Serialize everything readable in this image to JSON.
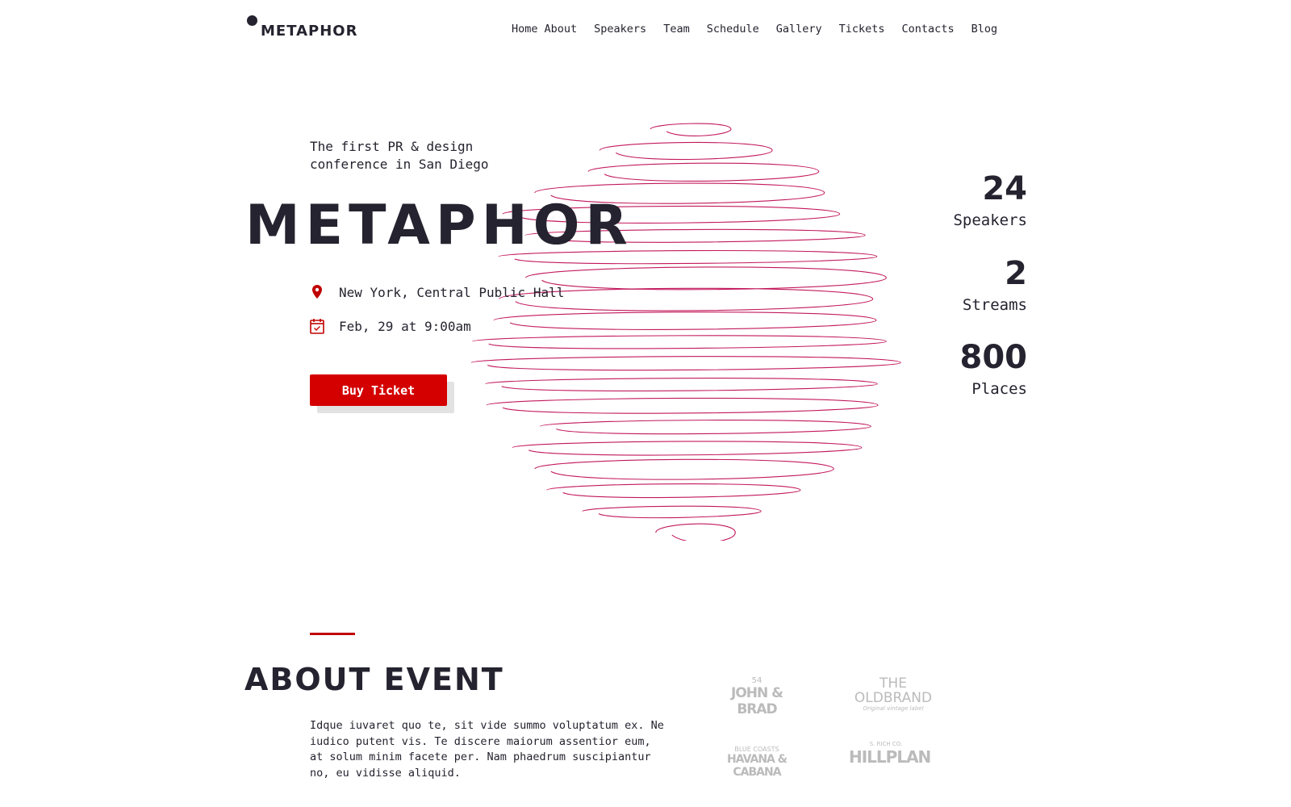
{
  "header": {
    "logo": "METAPHOR",
    "nav": [
      "Home",
      "About",
      "Speakers",
      "Team",
      "Schedule",
      "Gallery",
      "Tickets",
      "Contacts",
      "Blog"
    ]
  },
  "hero": {
    "tagline": "The first PR & design conference in San Diego",
    "title": "METAPHOR",
    "location": "New York, Central Public Hall",
    "date": "Feb, 29 at 9:00am",
    "buy_label": "Buy Ticket",
    "accent": "#d40000",
    "scribble_color": "#c2185b"
  },
  "stats": [
    {
      "num": "24",
      "label": "Speakers"
    },
    {
      "num": "2",
      "label": "Streams"
    },
    {
      "num": "800",
      "label": "Places"
    }
  ],
  "about": {
    "title": "ABOUT EVENT",
    "text": "Idque iuvaret quo te, sit vide summo voluptatum ex. Ne iudico putent vis. Te discere maiorum assentior eum, at solum minim facete per. Nam phaedrum suscipiantur no, eu vidisse aliquid."
  },
  "brands": [
    {
      "main": "JOHN & BRAD",
      "sub": "54"
    },
    {
      "main": "THE OLDBRAND",
      "sub": "Original vintage label"
    },
    {
      "main": "HAVANA & CABANA",
      "sub": "BLUE COASTS"
    },
    {
      "main": "HILLPLAN",
      "sub": "S. RICH CO."
    }
  ]
}
